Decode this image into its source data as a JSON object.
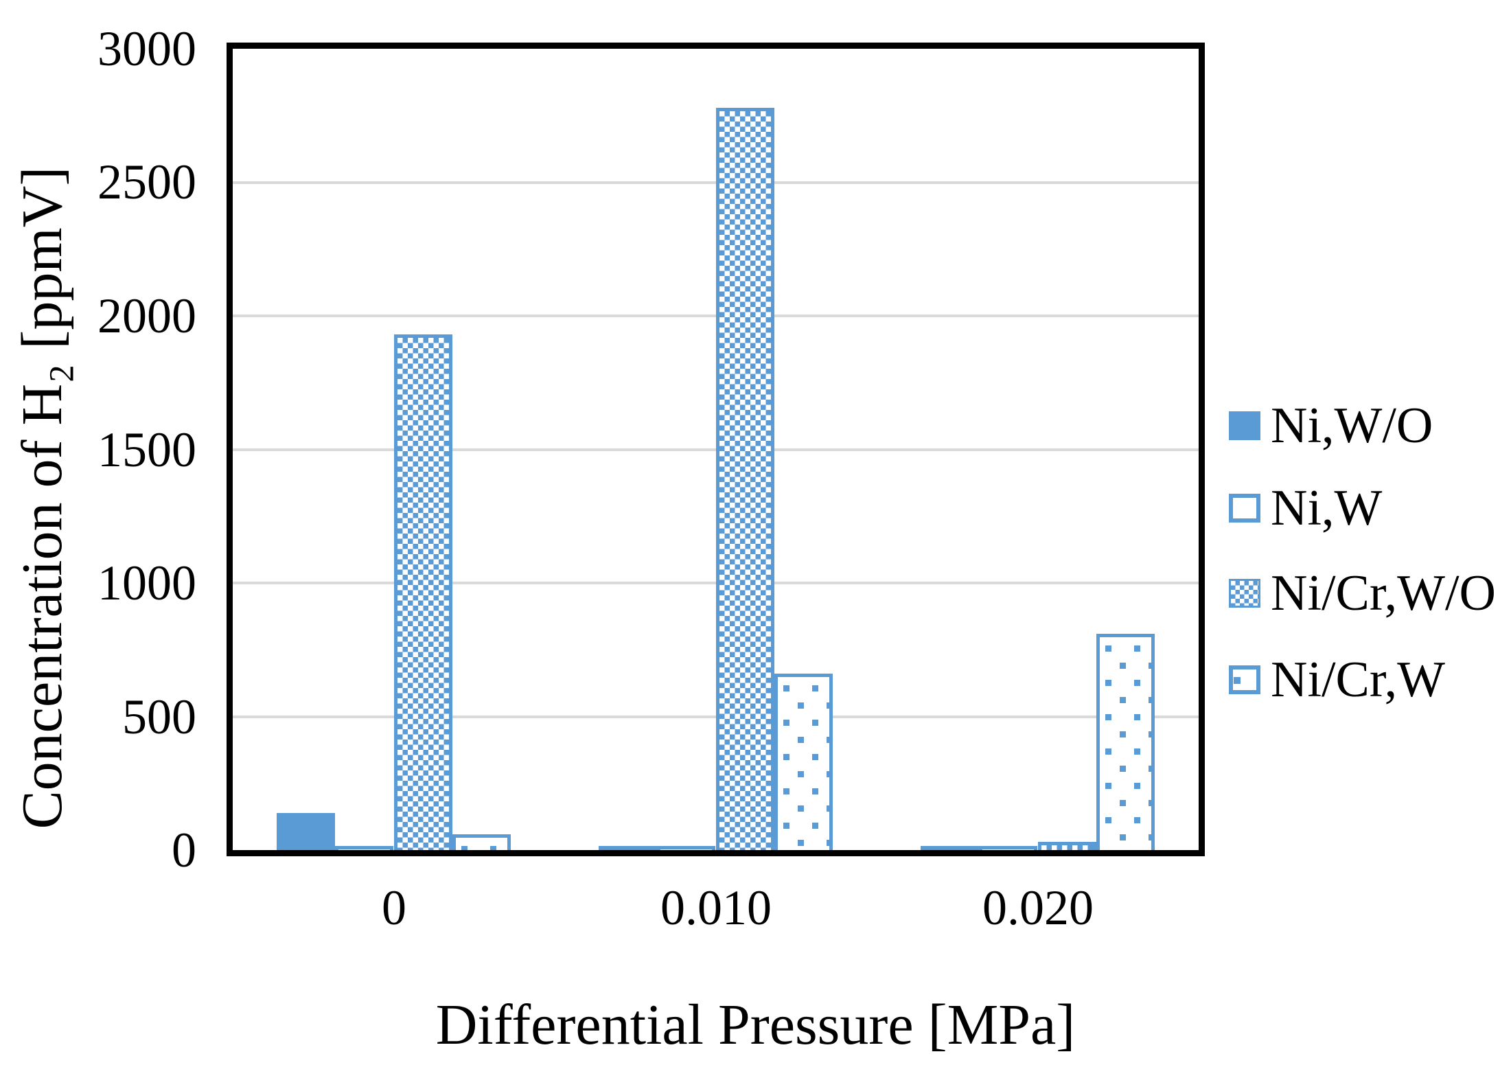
{
  "chart_data": {
    "type": "bar",
    "title": "",
    "xlabel": "Differential Pressure [MPa]",
    "ylabel": "Concentration of H₂ [ppmV]",
    "categories": [
      "0",
      "0.010",
      "0.020"
    ],
    "series": [
      {
        "name": "Ni,W/O",
        "pattern": "solid",
        "values": [
          140,
          15,
          15
        ]
      },
      {
        "name": "Ni,W",
        "pattern": "outline",
        "values": [
          15,
          15,
          15
        ]
      },
      {
        "name": "Ni/Cr,W/O",
        "pattern": "checker",
        "values": [
          1930,
          2780,
          30
        ]
      },
      {
        "name": "Ni/Cr,W",
        "pattern": "dots",
        "values": [
          60,
          660,
          810
        ]
      }
    ],
    "ylim": [
      0,
      3000
    ],
    "y_ticks": [
      "0",
      "500",
      "1000",
      "1500",
      "2000",
      "2500",
      "3000"
    ],
    "grid": true,
    "legend_position": "right",
    "colors": {
      "accent_blue": "#5b9bd5",
      "gridline": "#d9d9d9",
      "axis": "#000000",
      "background": "#ffffff"
    }
  }
}
